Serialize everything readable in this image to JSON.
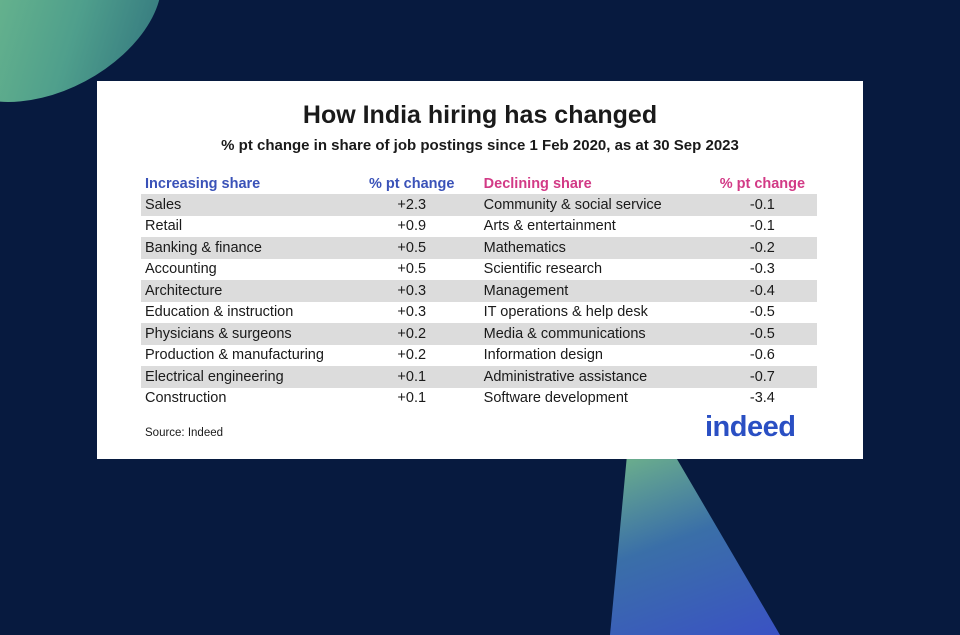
{
  "chart_data": {
    "type": "table",
    "title": "How India hiring has changed",
    "subtitle": "% pt change in share of job postings since 1 Feb 2020, as at 30 Sep 2023",
    "columns": [
      "Increasing share",
      "% pt change",
      "Declining share",
      "% pt change"
    ],
    "rows": [
      [
        "Sales",
        "+2.3",
        "Community & social service",
        "-0.1"
      ],
      [
        "Retail",
        "+0.9",
        "Arts & entertainment",
        "-0.1"
      ],
      [
        "Banking & finance",
        "+0.5",
        "Mathematics",
        "-0.2"
      ],
      [
        "Accounting",
        "+0.5",
        "Scientific research",
        "-0.3"
      ],
      [
        "Architecture",
        "+0.3",
        "Management",
        "-0.4"
      ],
      [
        "Education & instruction",
        "+0.3",
        "IT operations & help desk",
        "-0.5"
      ],
      [
        "Physicians & surgeons",
        "+0.2",
        "Media & communications",
        "-0.5"
      ],
      [
        "Production & manufacturing",
        "+0.2",
        "Information design",
        "-0.6"
      ],
      [
        "Electrical engineering",
        "+0.1",
        "Administrative assistance",
        "-0.7"
      ],
      [
        "Construction",
        "+0.1",
        "Software development",
        "-3.4"
      ]
    ],
    "source": "Source: Indeed",
    "logo_text": "indeed"
  },
  "colors": {
    "increasing_header": "#3a52b8",
    "declining_header": "#d23a86",
    "logo": "#2a4fc3",
    "background": "#071a3f"
  }
}
